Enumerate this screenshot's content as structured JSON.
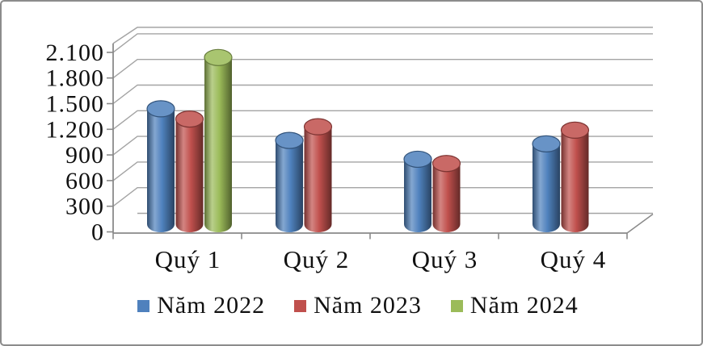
{
  "chart_data": {
    "type": "bar",
    "subtype": "3d-cylinder",
    "title": "",
    "categories": [
      "Quý 1",
      "Quý 2",
      "Quý 3",
      "Quý 4"
    ],
    "series": [
      {
        "name": "Năm 2022",
        "color": "#4F81BD",
        "values": [
          1350,
          980,
          760,
          940
        ]
      },
      {
        "name": "Năm 2023",
        "color": "#C0504D",
        "values": [
          1230,
          1140,
          710,
          1100
        ]
      },
      {
        "name": "Năm 2024",
        "color": "#9BBB59",
        "values": [
          1950,
          null,
          null,
          null
        ]
      }
    ],
    "ylim": [
      0,
      2100
    ],
    "ytick_step": 300,
    "ytick_labels": [
      "0",
      "300",
      "600",
      "900",
      "1.200",
      "1.500",
      "1.800",
      "2.100"
    ],
    "grid": true,
    "legend_position": "bottom",
    "gridline_color": "#A4A4A4",
    "axis_color": "#8A8A8A",
    "frame_border_color": "#8C8C8C",
    "background_color": "#FFFFFF"
  }
}
